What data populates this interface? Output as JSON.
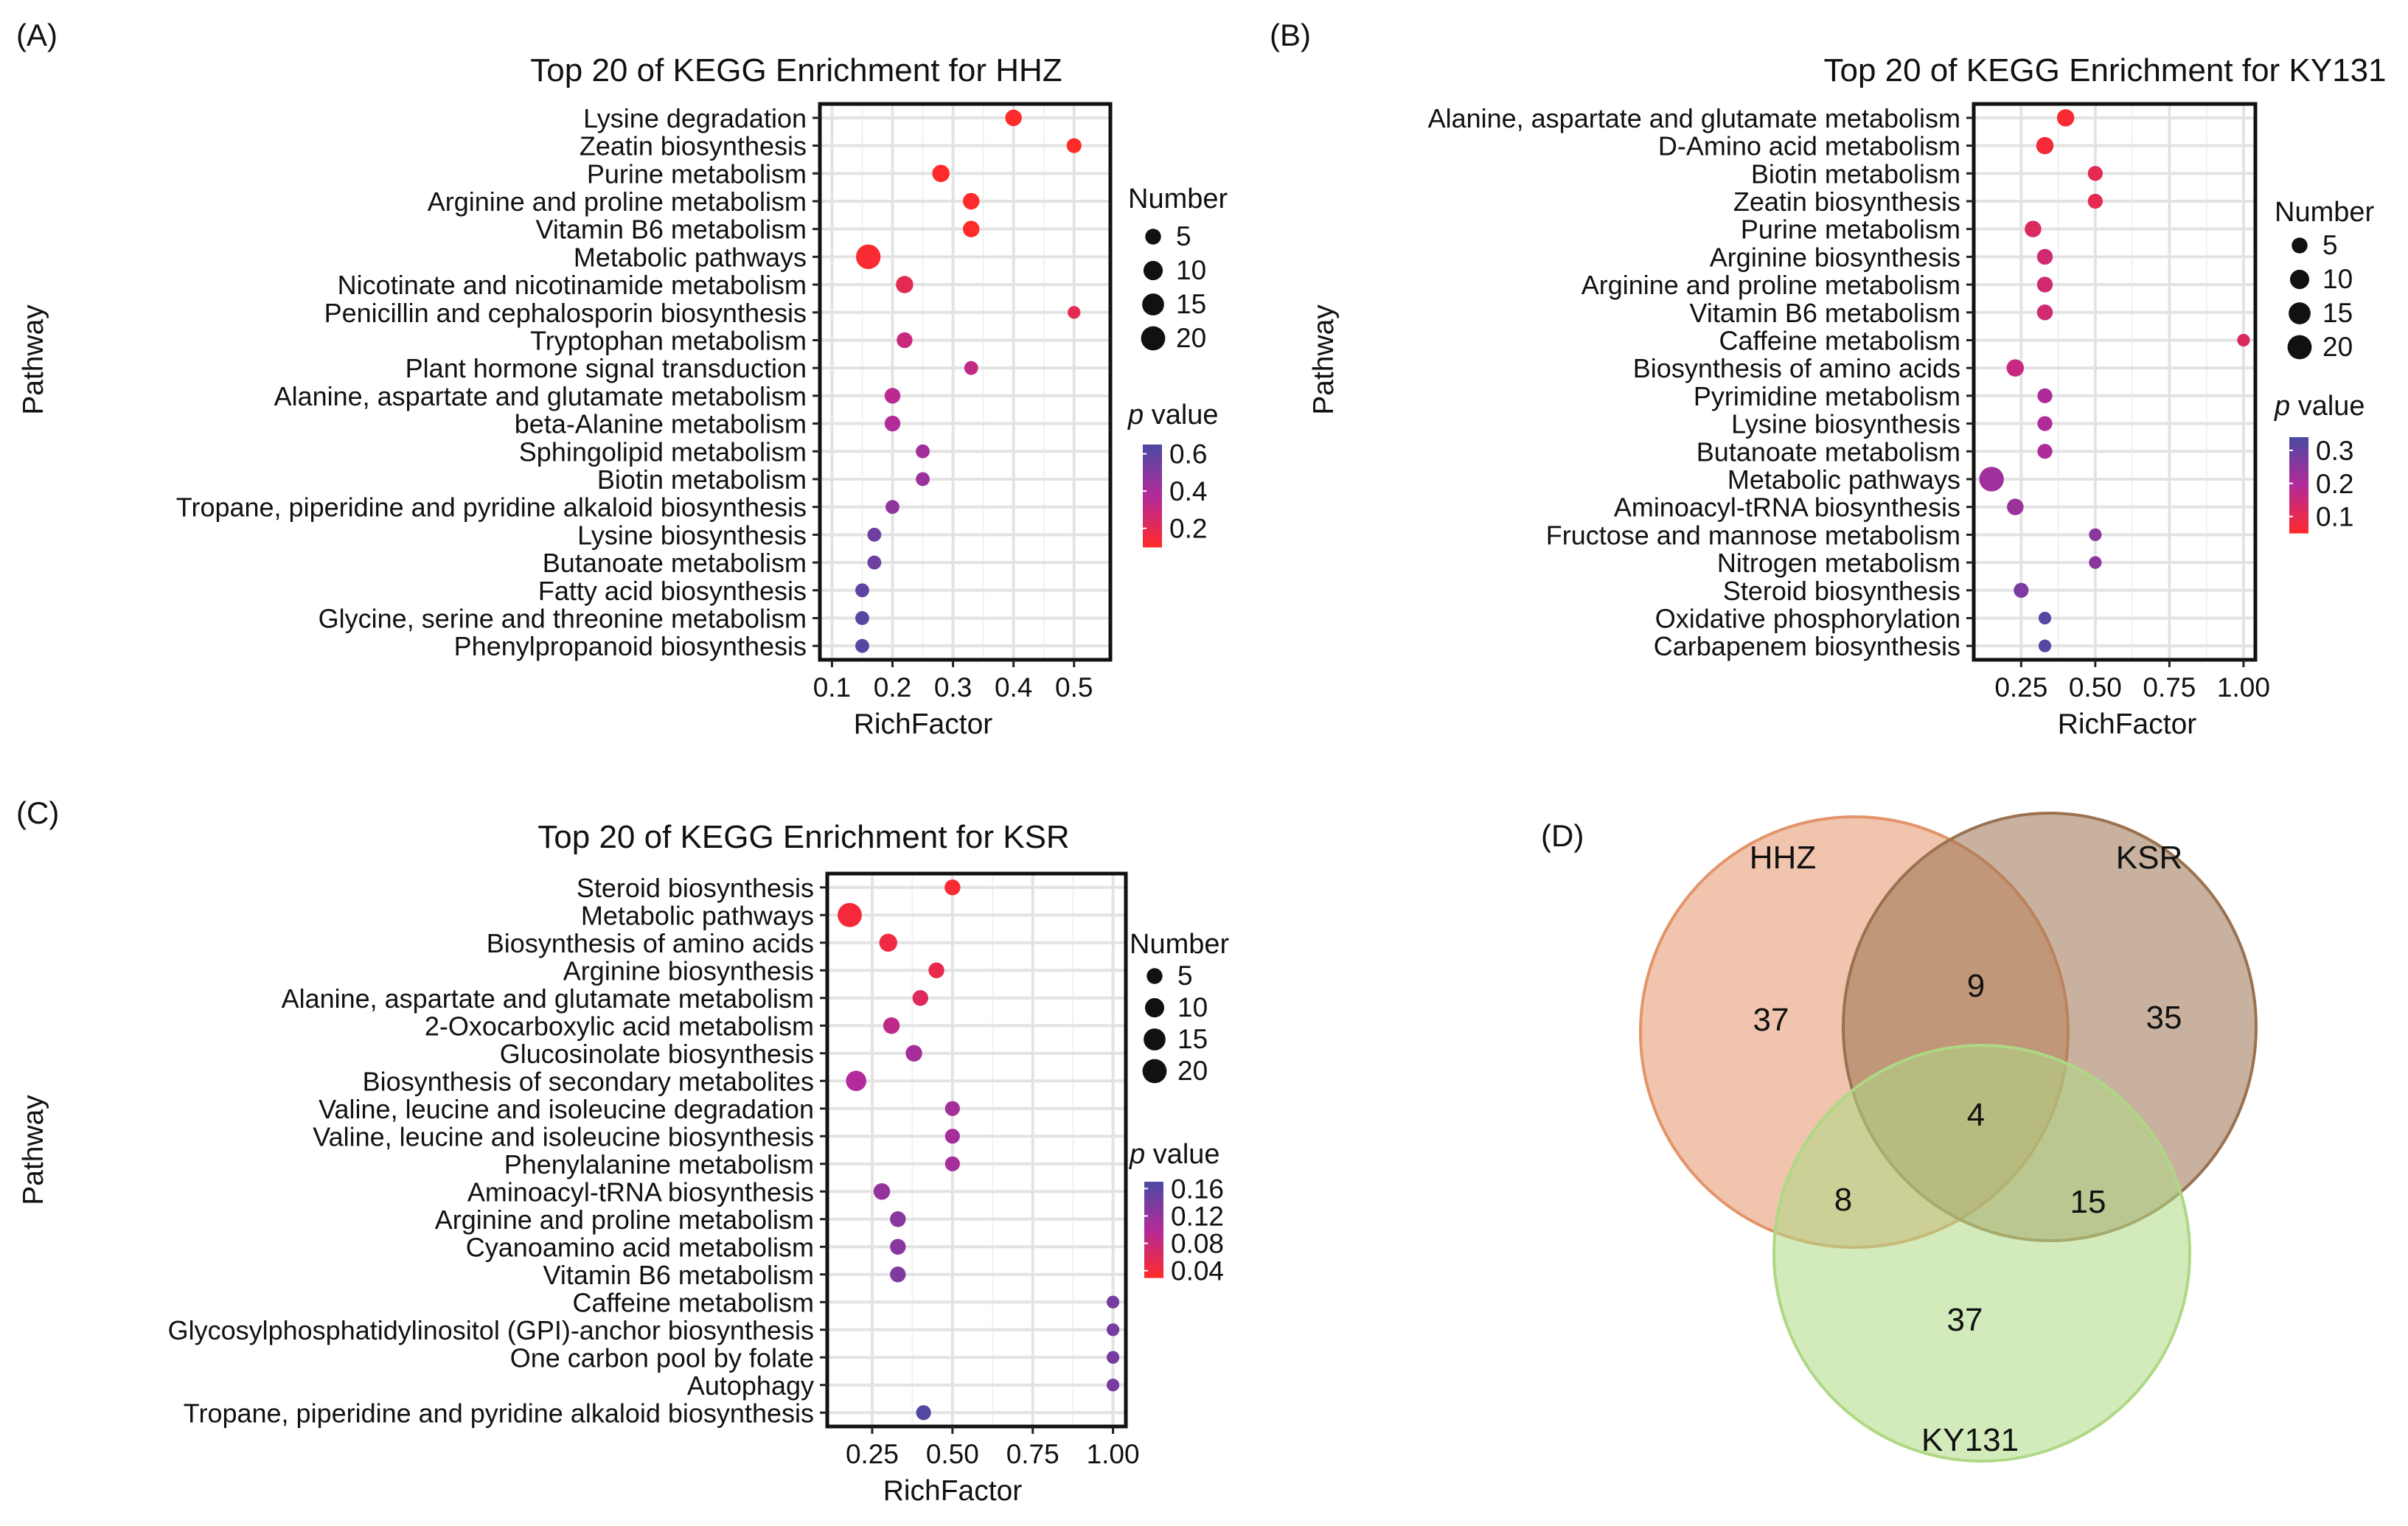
{
  "colors": {
    "p_high": "#4a4aa3",
    "p_mid": "#b32a9a",
    "p_low": "#ff2a2a",
    "venn_hhz": "#e3946a",
    "venn_ksr": "#9b7250",
    "venn_ky131": "#aed884"
  },
  "chart_data": [
    {
      "panel": "(A)",
      "type": "scatter",
      "title": "Top 20 of KEGG Enrichment for HHZ",
      "xlabel": "RichFactor",
      "ylabel": "Pathway",
      "xlim": [
        0.08,
        0.56
      ],
      "xticks": [
        0.1,
        0.2,
        0.3,
        0.4,
        0.5
      ],
      "xtick_labels": [
        "0.1",
        "0.2",
        "0.3",
        "0.4",
        "0.5"
      ],
      "size_legend": {
        "title": "Number",
        "values": [
          5,
          10,
          15,
          20
        ],
        "labels": [
          "5",
          "10",
          "15",
          "20"
        ]
      },
      "color_legend": {
        "title_italic": "p",
        "title_rest": " value",
        "range": [
          0.1,
          0.65
        ],
        "ticks": [
          0.6,
          0.4,
          0.2
        ],
        "labels": [
          "0.6",
          "0.4",
          "0.2"
        ]
      },
      "points": [
        {
          "pathway": "Lysine degradation",
          "rich_factor": 0.4,
          "number": 6,
          "p_value": 0.05
        },
        {
          "pathway": "Zeatin biosynthesis",
          "rich_factor": 0.5,
          "number": 4,
          "p_value": 0.07
        },
        {
          "pathway": "Purine metabolism",
          "rich_factor": 0.28,
          "number": 7,
          "p_value": 0.08
        },
        {
          "pathway": "Arginine and proline metabolism",
          "rich_factor": 0.33,
          "number": 6,
          "p_value": 0.1
        },
        {
          "pathway": "Vitamin B6 metabolism",
          "rich_factor": 0.33,
          "number": 6,
          "p_value": 0.1
        },
        {
          "pathway": "Metabolic pathways",
          "rich_factor": 0.16,
          "number": 21,
          "p_value": 0.12
        },
        {
          "pathway": "Nicotinate and nicotinamide metabolism",
          "rich_factor": 0.22,
          "number": 7,
          "p_value": 0.2
        },
        {
          "pathway": "Penicillin and cephalosporin biosynthesis",
          "rich_factor": 0.5,
          "number": 2,
          "p_value": 0.2
        },
        {
          "pathway": "Tryptophan metabolism",
          "rich_factor": 0.22,
          "number": 5,
          "p_value": 0.3
        },
        {
          "pathway": "Plant hormone signal transduction",
          "rich_factor": 0.33,
          "number": 3,
          "p_value": 0.32
        },
        {
          "pathway": "Alanine, aspartate and glutamate metabolism",
          "rich_factor": 0.2,
          "number": 5,
          "p_value": 0.35
        },
        {
          "pathway": "beta-Alanine metabolism",
          "rich_factor": 0.2,
          "number": 5,
          "p_value": 0.38
        },
        {
          "pathway": "Sphingolipid metabolism",
          "rich_factor": 0.25,
          "number": 3,
          "p_value": 0.42
        },
        {
          "pathway": "Biotin metabolism",
          "rich_factor": 0.25,
          "number": 3,
          "p_value": 0.44
        },
        {
          "pathway": "Tropane, piperidine and pyridine alkaloid biosynthesis",
          "rich_factor": 0.2,
          "number": 3,
          "p_value": 0.47
        },
        {
          "pathway": "Lysine biosynthesis",
          "rich_factor": 0.17,
          "number": 3,
          "p_value": 0.55
        },
        {
          "pathway": "Butanoate metabolism",
          "rich_factor": 0.17,
          "number": 3,
          "p_value": 0.56
        },
        {
          "pathway": "Fatty acid biosynthesis",
          "rich_factor": 0.15,
          "number": 3,
          "p_value": 0.6
        },
        {
          "pathway": "Glycine, serine and threonine metabolism",
          "rich_factor": 0.15,
          "number": 3,
          "p_value": 0.62
        },
        {
          "pathway": "Phenylpropanoid biosynthesis",
          "rich_factor": 0.15,
          "number": 3,
          "p_value": 0.63
        }
      ]
    },
    {
      "panel": "(B)",
      "type": "scatter",
      "title": "Top 20 of KEGG Enrichment for KY131",
      "xlabel": "RichFactor",
      "ylabel": "Pathway",
      "xlim": [
        0.09,
        1.04
      ],
      "xticks": [
        0.25,
        0.5,
        0.75,
        1.0
      ],
      "xtick_labels": [
        "0.25",
        "0.50",
        "0.75",
        "1.00"
      ],
      "size_legend": {
        "title": "Number",
        "values": [
          5,
          10,
          15,
          20
        ],
        "labels": [
          "5",
          "10",
          "15",
          "20"
        ]
      },
      "color_legend": {
        "title_italic": "p",
        "title_rest": " value",
        "range": [
          0.05,
          0.34
        ],
        "ticks": [
          0.3,
          0.2,
          0.1
        ],
        "labels": [
          "0.3",
          "0.2",
          "0.1"
        ]
      },
      "points": [
        {
          "pathway": "Alanine, aspartate and glutamate metabolism",
          "rich_factor": 0.4,
          "number": 7,
          "p_value": 0.06
        },
        {
          "pathway": "D-Amino acid metabolism",
          "rich_factor": 0.33,
          "number": 7,
          "p_value": 0.07
        },
        {
          "pathway": "Biotin metabolism",
          "rich_factor": 0.5,
          "number": 4,
          "p_value": 0.1
        },
        {
          "pathway": "Zeatin biosynthesis",
          "rich_factor": 0.5,
          "number": 4,
          "p_value": 0.1
        },
        {
          "pathway": "Purine metabolism",
          "rich_factor": 0.29,
          "number": 6,
          "p_value": 0.12
        },
        {
          "pathway": "Arginine biosynthesis",
          "rich_factor": 0.33,
          "number": 5,
          "p_value": 0.14
        },
        {
          "pathway": "Arginine and proline metabolism",
          "rich_factor": 0.33,
          "number": 5,
          "p_value": 0.14
        },
        {
          "pathway": "Vitamin B6 metabolism",
          "rich_factor": 0.33,
          "number": 5,
          "p_value": 0.14
        },
        {
          "pathway": "Caffeine metabolism",
          "rich_factor": 1.0,
          "number": 2,
          "p_value": 0.12
        },
        {
          "pathway": "Biosynthesis of amino acids",
          "rich_factor": 0.23,
          "number": 7,
          "p_value": 0.16
        },
        {
          "pathway": "Pyrimidine metabolism",
          "rich_factor": 0.33,
          "number": 4,
          "p_value": 0.2
        },
        {
          "pathway": "Lysine biosynthesis",
          "rich_factor": 0.33,
          "number": 4,
          "p_value": 0.2
        },
        {
          "pathway": "Butanoate metabolism",
          "rich_factor": 0.33,
          "number": 4,
          "p_value": 0.2
        },
        {
          "pathway": "Metabolic pathways",
          "rich_factor": 0.15,
          "number": 21,
          "p_value": 0.22
        },
        {
          "pathway": "Aminoacyl-tRNA biosynthesis",
          "rich_factor": 0.23,
          "number": 6,
          "p_value": 0.23
        },
        {
          "pathway": "Fructose and mannose metabolism",
          "rich_factor": 0.5,
          "number": 2,
          "p_value": 0.25
        },
        {
          "pathway": "Nitrogen metabolism",
          "rich_factor": 0.5,
          "number": 2,
          "p_value": 0.25
        },
        {
          "pathway": "Steroid biosynthesis",
          "rich_factor": 0.25,
          "number": 4,
          "p_value": 0.27
        },
        {
          "pathway": "Oxidative phosphorylation",
          "rich_factor": 0.33,
          "number": 2,
          "p_value": 0.32
        },
        {
          "pathway": "Carbapenem biosynthesis",
          "rich_factor": 0.33,
          "number": 2,
          "p_value": 0.32
        }
      ]
    },
    {
      "panel": "(C)",
      "type": "scatter",
      "title": "Top 20 of KEGG Enrichment for KSR",
      "xlabel": "RichFactor",
      "ylabel": "Pathway",
      "xlim": [
        0.11,
        1.04
      ],
      "xticks": [
        0.25,
        0.5,
        0.75,
        1.0
      ],
      "xtick_labels": [
        "0.25",
        "0.50",
        "0.75",
        "1.00"
      ],
      "size_legend": {
        "title": "Number",
        "values": [
          5,
          10,
          15,
          20
        ],
        "labels": [
          "5",
          "10",
          "15",
          "20"
        ]
      },
      "color_legend": {
        "title_italic": "p",
        "title_rest": " value",
        "range": [
          0.03,
          0.17
        ],
        "ticks": [
          0.16,
          0.12,
          0.08,
          0.04
        ],
        "labels": [
          "0.16",
          "0.12",
          "0.08",
          "0.04"
        ]
      },
      "points": [
        {
          "pathway": "Steroid biosynthesis",
          "rich_factor": 0.5,
          "number": 5,
          "p_value": 0.035
        },
        {
          "pathway": "Metabolic pathways",
          "rich_factor": 0.18,
          "number": 20,
          "p_value": 0.04
        },
        {
          "pathway": "Biosynthesis of amino acids",
          "rich_factor": 0.3,
          "number": 8,
          "p_value": 0.045
        },
        {
          "pathway": "Arginine biosynthesis",
          "rich_factor": 0.45,
          "number": 5,
          "p_value": 0.05
        },
        {
          "pathway": "Alanine, aspartate and glutamate metabolism",
          "rich_factor": 0.4,
          "number": 5,
          "p_value": 0.06
        },
        {
          "pathway": "2-Oxocarboxylic acid metabolism",
          "rich_factor": 0.31,
          "number": 6,
          "p_value": 0.09
        },
        {
          "pathway": "Glucosinolate biosynthesis",
          "rich_factor": 0.38,
          "number": 6,
          "p_value": 0.11
        },
        {
          "pathway": "Biosynthesis of secondary metabolites",
          "rich_factor": 0.2,
          "number": 12,
          "p_value": 0.1
        },
        {
          "pathway": "Valine, leucine and isoleucine degradation",
          "rich_factor": 0.5,
          "number": 4,
          "p_value": 0.11
        },
        {
          "pathway": "Valine, leucine and isoleucine biosynthesis",
          "rich_factor": 0.5,
          "number": 4,
          "p_value": 0.11
        },
        {
          "pathway": "Phenylalanine metabolism",
          "rich_factor": 0.5,
          "number": 4,
          "p_value": 0.11
        },
        {
          "pathway": "Aminoacyl-tRNA biosynthesis",
          "rich_factor": 0.28,
          "number": 6,
          "p_value": 0.12
        },
        {
          "pathway": "Arginine and proline metabolism",
          "rich_factor": 0.33,
          "number": 5,
          "p_value": 0.13
        },
        {
          "pathway": "Cyanoamino acid metabolism",
          "rich_factor": 0.33,
          "number": 5,
          "p_value": 0.13
        },
        {
          "pathway": "Vitamin B6 metabolism",
          "rich_factor": 0.33,
          "number": 5,
          "p_value": 0.135
        },
        {
          "pathway": "Caffeine metabolism",
          "rich_factor": 1.0,
          "number": 2,
          "p_value": 0.14
        },
        {
          "pathway": "Glycosylphosphatidylinositol (GPI)-anchor biosynthesis",
          "rich_factor": 1.0,
          "number": 2,
          "p_value": 0.14
        },
        {
          "pathway": "One carbon pool by folate",
          "rich_factor": 1.0,
          "number": 2,
          "p_value": 0.14
        },
        {
          "pathway": "Autophagy",
          "rich_factor": 1.0,
          "number": 2,
          "p_value": 0.14
        },
        {
          "pathway": "Tropane, piperidine and pyridine alkaloid biosynthesis",
          "rich_factor": 0.41,
          "number": 4,
          "p_value": 0.165
        }
      ]
    }
  ],
  "venn": {
    "panel": "(D)",
    "sets": [
      {
        "name": "HHZ",
        "color": "#e3946a"
      },
      {
        "name": "KSR",
        "color": "#9b7250"
      },
      {
        "name": "KY131",
        "color": "#aed884"
      }
    ],
    "regions": [
      {
        "key": "HHZ_only",
        "value": "37"
      },
      {
        "key": "HHZ_KSR",
        "value": "9"
      },
      {
        "key": "KSR_only",
        "value": "35"
      },
      {
        "key": "all_three",
        "value": "4"
      },
      {
        "key": "HHZ_KY131",
        "value": "8"
      },
      {
        "key": "KSR_KY131",
        "value": "15"
      },
      {
        "key": "KY131_only",
        "value": "37"
      }
    ]
  }
}
